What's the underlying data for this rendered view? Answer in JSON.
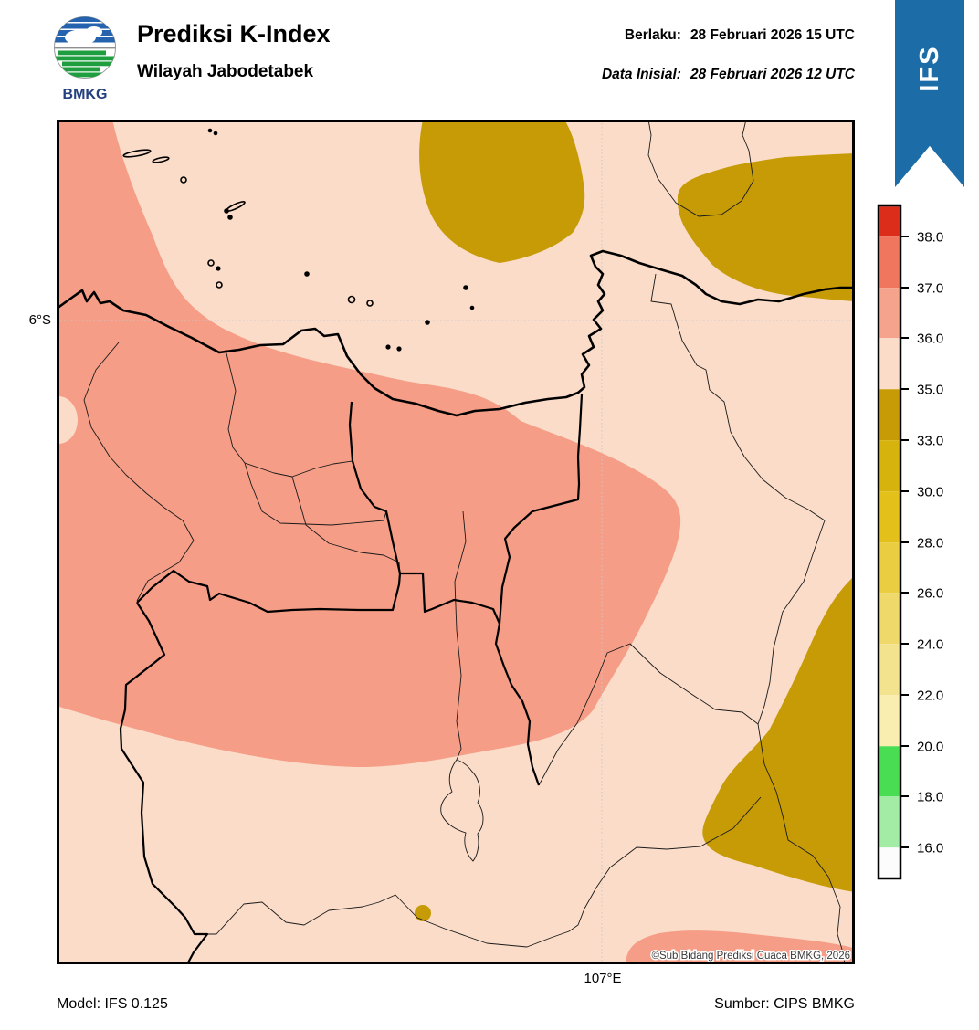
{
  "header": {
    "logo_text": "BMKG",
    "title": "Prediksi K-Index",
    "subtitle": "Wilayah Jabodetabek",
    "valid_label": "Berlaku:",
    "valid_value": "28 Februari 2026 15 UTC",
    "initial_label": "Data Inisial:",
    "initial_value": "28 Februari 2026 12 UTC",
    "ribbon": "IFS"
  },
  "map": {
    "lat_label": "6°S",
    "lon_label": "107°E",
    "copyright": "©Sub Bidang Prediksi Cuaca BMKG, 2026"
  },
  "footer": {
    "model": "Model: IFS 0.125",
    "source": "Sumber: CIPS BMKG"
  },
  "colorbar": {
    "tick_labels": [
      "38.0",
      "37.0",
      "36.0",
      "35.0",
      "33.0",
      "30.0",
      "28.0",
      "26.0",
      "24.0",
      "22.0",
      "20.0",
      "18.0",
      "16.0"
    ],
    "colors": [
      "#DC2D1B",
      "#F0775E",
      "#F5A38C",
      "#FBDCC8",
      "#C69B05",
      "#D7B30D",
      "#E3C01A",
      "#EACD40",
      "#EFD96B",
      "#F4E38E",
      "#F9EEB0",
      "#49DD54",
      "#A3ECA6",
      "#FCFCFC"
    ]
  },
  "colors": {
    "ribbon_blue": "#1B6CA7",
    "band_35_36_bg": "#FBDCC8",
    "band_36_37": "#F59D86",
    "band_33_35": "#C69B05",
    "gridline": "#C9C9C9",
    "logo_blue": "#2563AE",
    "logo_green": "#1E9E3E",
    "logo_text": "#24407E",
    "copyright_text": "#3A3A3A"
  }
}
